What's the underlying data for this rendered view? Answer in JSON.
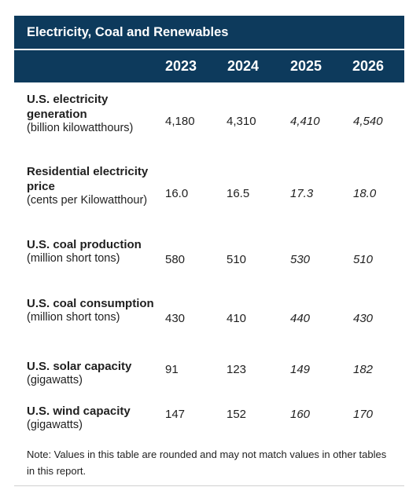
{
  "title": "Electricity, Coal and Renewables",
  "years": [
    "2023",
    "2024",
    "2025",
    "2026"
  ],
  "rows": [
    {
      "name": "U.S. electricity generation",
      "unit": "(billion kilowatthours)",
      "values": [
        "4,180",
        "4,310",
        "4,410",
        "4,540"
      ]
    },
    {
      "name": "Residential electricity price",
      "unit": "(cents per Kilowatthour)",
      "values": [
        "16.0",
        "16.5",
        "17.3",
        "18.0"
      ]
    },
    {
      "name": "U.S. coal production",
      "unit": "(million short tons)",
      "values": [
        "580",
        "510",
        "530",
        "510"
      ]
    },
    {
      "name": "U.S. coal consumption",
      "unit": "(million short tons)",
      "values": [
        "430",
        "410",
        "440",
        "430"
      ]
    },
    {
      "name": "U.S. solar capacity",
      "unit": "(gigawatts)",
      "values": [
        "91",
        "123",
        "149",
        "182"
      ]
    },
    {
      "name": "U.S. wind capacity",
      "unit": "(gigawatts)",
      "values": [
        "147",
        "152",
        "160",
        "170"
      ]
    }
  ],
  "note": "Note: Values in this table are rounded and may not match values in other tables in this report.",
  "colors": {
    "header_bg": "#0d3a5c",
    "header_text": "#ffffff"
  }
}
